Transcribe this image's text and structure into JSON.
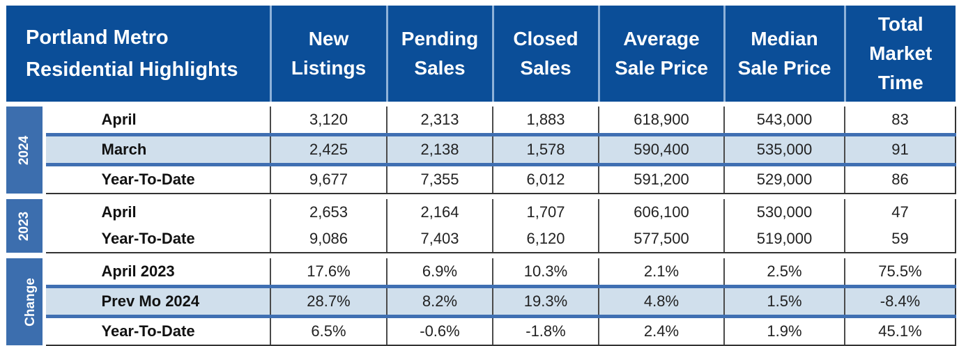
{
  "header": {
    "title_line1": "Portland Metro",
    "title_line2": "Residential Highlights",
    "columns": [
      {
        "line1": "New",
        "line2": "Listings"
      },
      {
        "line1": "Pending",
        "line2": "Sales"
      },
      {
        "line1": "Closed",
        "line2": "Sales"
      },
      {
        "line1": "Average",
        "line2": "Sale Price"
      },
      {
        "line1": "Median",
        "line2": "Sale Price"
      },
      {
        "line1": "Total",
        "line2": "Market",
        "line3": "Time"
      }
    ]
  },
  "groups": [
    {
      "label": "2024",
      "rows": [
        {
          "label": "April",
          "values": [
            "3,120",
            "2,313",
            "1,883",
            "618,900",
            "543,000",
            "83"
          ]
        },
        {
          "label": "March",
          "values": [
            "2,425",
            "2,138",
            "1,578",
            "590,400",
            "535,000",
            "91"
          ]
        },
        {
          "label": "Year-To-Date",
          "values": [
            "9,677",
            "7,355",
            "6,012",
            "591,200",
            "529,000",
            "86"
          ]
        }
      ]
    },
    {
      "label": "2023",
      "rows": [
        {
          "label": "April",
          "values": [
            "2,653",
            "2,164",
            "1,707",
            "606,100",
            "530,000",
            "47"
          ]
        },
        {
          "label": "Year-To-Date",
          "values": [
            "9,086",
            "7,403",
            "6,120",
            "577,500",
            "519,000",
            "59"
          ]
        }
      ]
    },
    {
      "label": "Change",
      "rows": [
        {
          "label": "April 2023",
          "values": [
            "17.6%",
            "6.9%",
            "10.3%",
            "2.1%",
            "2.5%",
            "75.5%"
          ]
        },
        {
          "label": "Prev Mo 2024",
          "values": [
            "28.7%",
            "8.2%",
            "19.3%",
            "4.8%",
            "1.5%",
            "-8.4%"
          ]
        },
        {
          "label": "Year-To-Date",
          "values": [
            "6.5%",
            "-0.6%",
            "-1.8%",
            "2.4%",
            "1.9%",
            "45.1%"
          ]
        }
      ]
    }
  ],
  "colors": {
    "header_bg": "#0b4e98",
    "group_bg": "#3c6eae",
    "shade_bg": "#d0dfec"
  }
}
